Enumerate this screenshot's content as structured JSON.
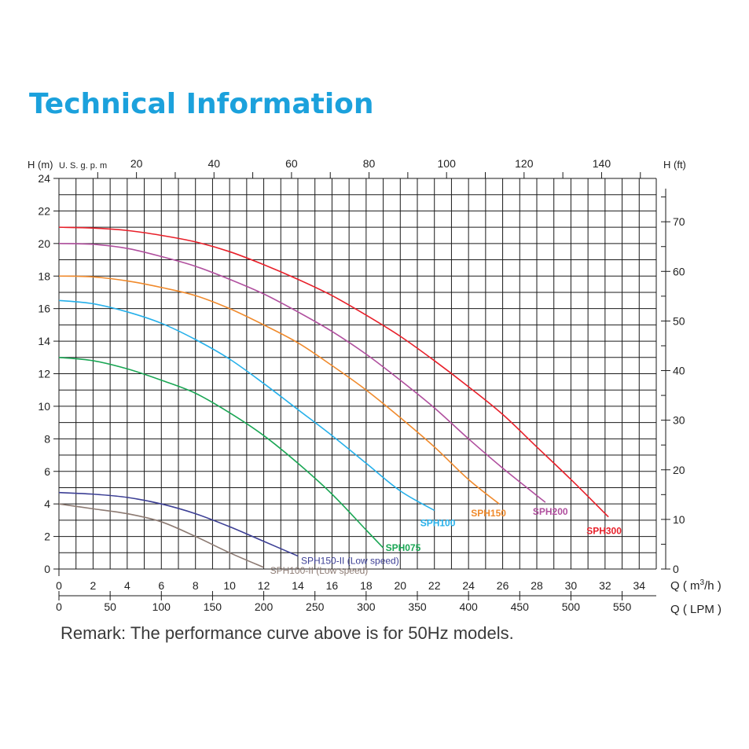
{
  "page": {
    "title": "Technical Information",
    "remark": "Remark: The performance curve above is for 50Hz models."
  },
  "chart_data": {
    "type": "line",
    "title": "",
    "x_axis": {
      "label": "Q ( m³/h )",
      "unit_base": "Q ( m",
      "unit_sup": "3",
      "unit_tail": "/h )",
      "range": [
        0,
        35
      ],
      "ticks": [
        0,
        2,
        4,
        6,
        8,
        10,
        12,
        14,
        16,
        18,
        20,
        22,
        24,
        26,
        28,
        30,
        32,
        34
      ]
    },
    "x_axis_lpm": {
      "label": "Q ( LPM )",
      "ticks": [
        0,
        50,
        100,
        150,
        200,
        250,
        300,
        350,
        400,
        450,
        500,
        550
      ]
    },
    "x_axis_gpm": {
      "label": "U. S. g. p. m",
      "ticks": [
        20,
        40,
        60,
        80,
        100,
        120,
        140
      ]
    },
    "y_axis": {
      "label": "H (m)",
      "range": [
        0,
        24
      ],
      "ticks": [
        0,
        2,
        4,
        6,
        8,
        10,
        12,
        14,
        16,
        18,
        20,
        22,
        24
      ]
    },
    "y_axis_ft": {
      "label": "H (ft)",
      "ticks": [
        0,
        10,
        20,
        30,
        40,
        50,
        60,
        70
      ]
    },
    "grid": true,
    "series": [
      {
        "name": "SPH300",
        "color": "#e8202a",
        "x": [
          0,
          2,
          4,
          6,
          8,
          10,
          12,
          14,
          16,
          18,
          20,
          22,
          24,
          26,
          28,
          30,
          32.2
        ],
        "y": [
          21,
          20.95,
          20.8,
          20.5,
          20.1,
          19.5,
          18.7,
          17.8,
          16.8,
          15.6,
          14.3,
          12.8,
          11.2,
          9.5,
          7.5,
          5.5,
          3.2
        ]
      },
      {
        "name": "SPH200",
        "color": "#b04f9e",
        "x": [
          0,
          2,
          4,
          6,
          8,
          10,
          12,
          14,
          16,
          18,
          20,
          22,
          24,
          26,
          28.5
        ],
        "y": [
          20,
          19.95,
          19.7,
          19.2,
          18.6,
          17.8,
          16.9,
          15.8,
          14.6,
          13.2,
          11.6,
          9.9,
          8.0,
          6.2,
          4.1
        ]
      },
      {
        "name": "SPH150",
        "color": "#f08a2c",
        "x": [
          0,
          2,
          4,
          6,
          8,
          10,
          12,
          14,
          16,
          18,
          20,
          22,
          24,
          25.8
        ],
        "y": [
          18,
          17.95,
          17.7,
          17.3,
          16.8,
          16.0,
          15.0,
          13.9,
          12.5,
          11.0,
          9.3,
          7.5,
          5.5,
          4.0
        ]
      },
      {
        "name": "SPH100",
        "color": "#26b0ea",
        "x": [
          0,
          2,
          4,
          6,
          8,
          10,
          12,
          14,
          16,
          18,
          20,
          22
        ],
        "y": [
          16.5,
          16.3,
          15.8,
          15.1,
          14.1,
          12.9,
          11.4,
          9.8,
          8.2,
          6.5,
          4.8,
          3.6
        ]
      },
      {
        "name": "SPH075",
        "color": "#1aa654",
        "x": [
          0,
          2,
          4,
          6,
          8,
          10,
          12,
          14,
          16,
          18,
          19
        ],
        "y": [
          13,
          12.8,
          12.3,
          11.6,
          10.8,
          9.6,
          8.2,
          6.5,
          4.6,
          2.4,
          1.3
        ]
      },
      {
        "name": "SPH150-II (Low speed)",
        "color": "#3c3f95",
        "x": [
          0,
          2,
          4,
          6,
          8,
          10,
          12,
          14
        ],
        "y": [
          4.7,
          4.6,
          4.4,
          4.0,
          3.4,
          2.6,
          1.7,
          0.8
        ]
      },
      {
        "name": "SPH100-II (Low speed)",
        "color": "#8c7a72",
        "x": [
          0,
          2,
          4,
          6,
          8,
          10,
          12
        ],
        "y": [
          4.0,
          3.7,
          3.4,
          2.9,
          2.0,
          1.0,
          0.1
        ]
      }
    ]
  }
}
